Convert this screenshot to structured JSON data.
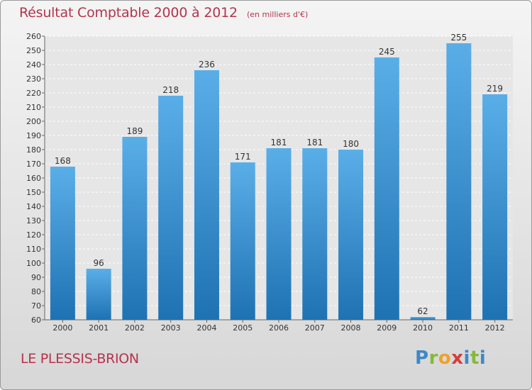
{
  "header": {
    "title": "Résultat Comptable 2000 à 2012",
    "subtitle": "(en milliers d'€)"
  },
  "footer": {
    "location": "LE PLESSIS-BRION",
    "brand": [
      "P",
      "r",
      "o",
      "x",
      "i",
      "t",
      "i"
    ]
  },
  "colors": {
    "bar_light": "#5aaee8",
    "bar_dark": "#1f72b2",
    "title": "#b5334d"
  },
  "chart_data": {
    "type": "bar",
    "title": "Résultat Comptable 2000 à 2012",
    "xlabel": "",
    "ylabel": "",
    "categories": [
      "2000",
      "2001",
      "2002",
      "2003",
      "2004",
      "2005",
      "2006",
      "2007",
      "2008",
      "2009",
      "2010",
      "2011",
      "2012"
    ],
    "values": [
      168,
      96,
      189,
      218,
      236,
      171,
      181,
      181,
      180,
      245,
      62,
      255,
      219
    ],
    "ylim": [
      60,
      260
    ],
    "yticks": [
      60,
      70,
      80,
      90,
      100,
      110,
      120,
      130,
      140,
      150,
      160,
      170,
      180,
      190,
      200,
      210,
      220,
      230,
      240,
      250,
      260
    ],
    "grid": true,
    "data_labels": true
  }
}
